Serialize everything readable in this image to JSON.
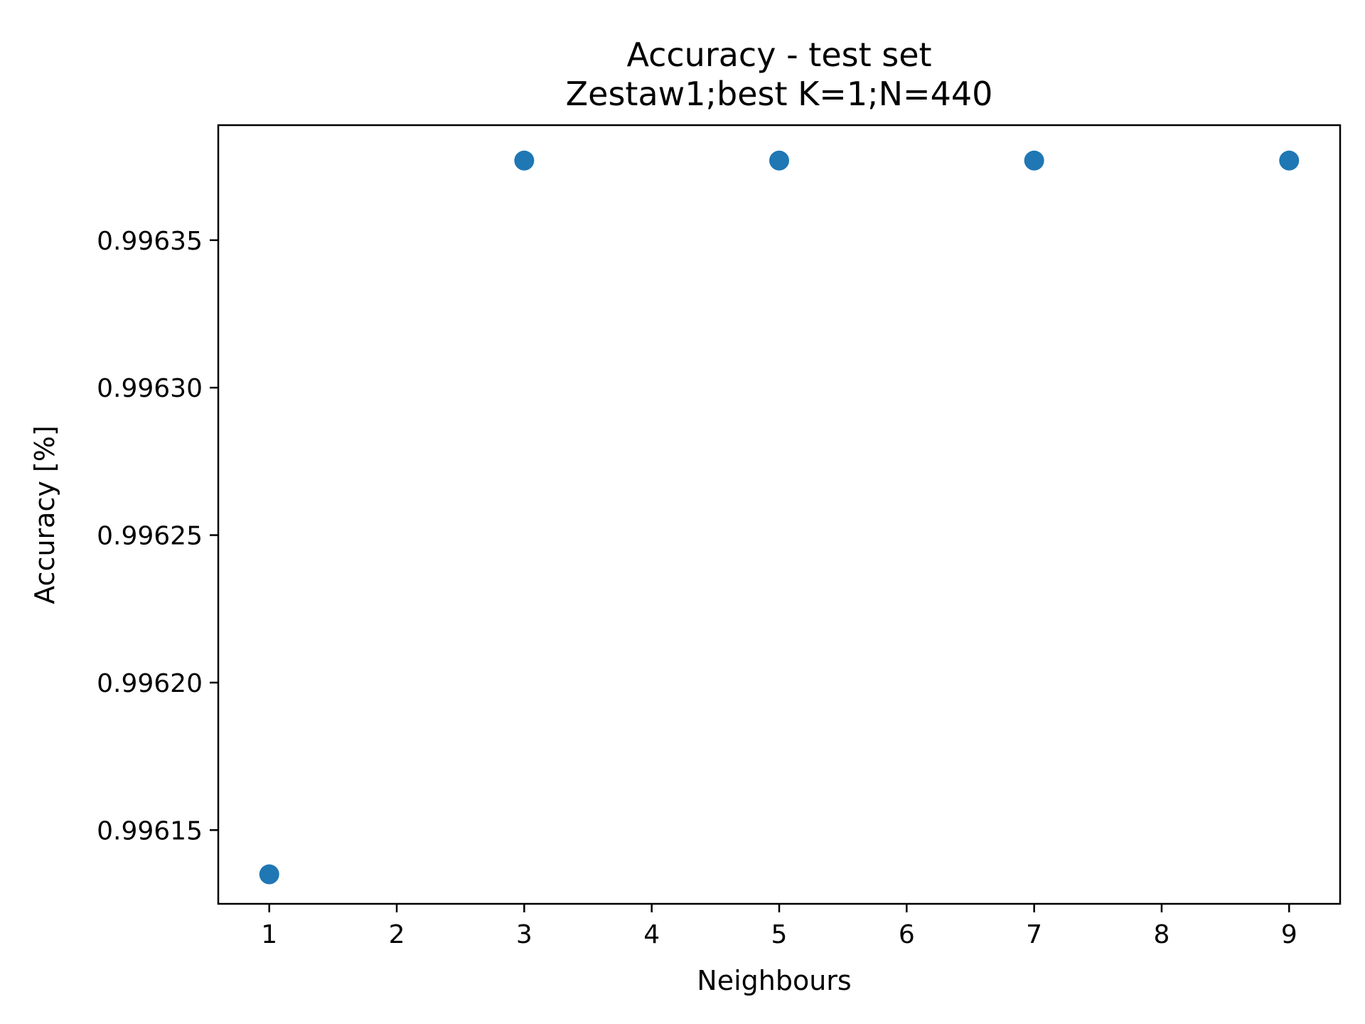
{
  "chart_data": {
    "type": "scatter",
    "title": "Accuracy - test set",
    "subtitle": "Zestaw1;best K=1;N=440",
    "xlabel": "Neighbours",
    "ylabel": "Accuracy [%]",
    "x": [
      1,
      3,
      5,
      7,
      9
    ],
    "y": [
      0.996135,
      0.996377,
      0.996377,
      0.996377,
      0.996377
    ],
    "xlim": [
      0.6,
      9.4
    ],
    "ylim": [
      0.996125,
      0.996389
    ],
    "xticks": [
      "1",
      "2",
      "3",
      "4",
      "5",
      "6",
      "7",
      "8",
      "9"
    ],
    "yticks": [
      "0.99615",
      "0.99620",
      "0.99625",
      "0.99630",
      "0.99635"
    ],
    "grid": false,
    "marker_color": "#1f77b4"
  }
}
